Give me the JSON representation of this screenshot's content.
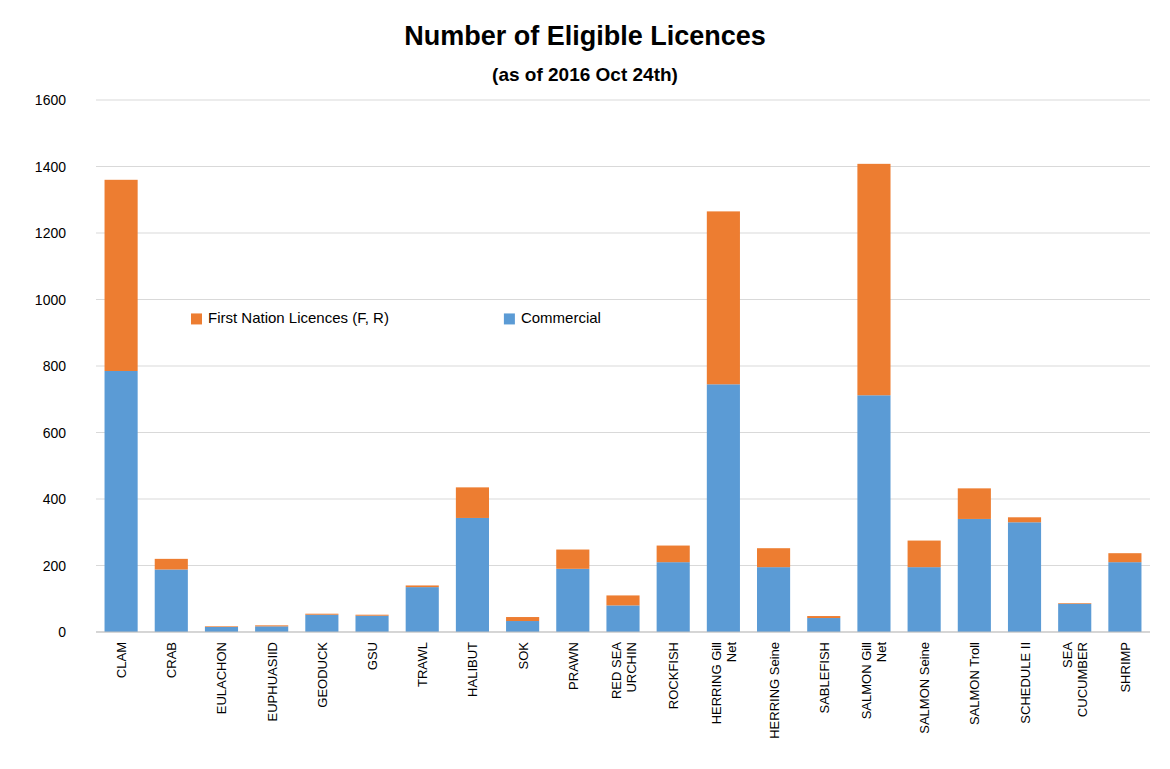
{
  "chart_data": {
    "type": "bar",
    "stacked": true,
    "title": "Number of Eligible Licences",
    "subtitle": "(as of 2016 Oct 24th)",
    "categories": [
      "CLAM",
      "CRAB",
      "EULACHON",
      "EUPHUASIID",
      "GEODUCK",
      "GSU",
      "TRAWL",
      "HALIBUT",
      "SOK",
      "PRAWN",
      "RED SEA\nURCHIN",
      "ROCKFISH",
      "HERRING Gill\nNet",
      "HERRING Seine",
      "SABLEFISH",
      "SALMON Gill\nNet",
      "SALMON Seine",
      "SALMON Troll",
      "SCHEDULE II",
      "SEA\nCUCUMBER",
      "SHRIMP"
    ],
    "series": [
      {
        "name": "Commercial",
        "color": "#5b9bd5",
        "values": [
          785,
          188,
          15,
          17,
          52,
          49,
          135,
          343,
          33,
          190,
          80,
          210,
          745,
          195,
          42,
          712,
          195,
          340,
          330,
          85,
          210
        ]
      },
      {
        "name": "First Nation Licences (F, R)",
        "color": "#ed7d31",
        "values": [
          575,
          32,
          2,
          3,
          3,
          3,
          5,
          92,
          12,
          58,
          30,
          50,
          520,
          57,
          6,
          696,
          80,
          92,
          15,
          2,
          27
        ]
      }
    ],
    "ylim": [
      0,
      1600
    ],
    "yticks": [
      0,
      200,
      400,
      600,
      800,
      1000,
      1200,
      1400,
      1600
    ],
    "grid": true,
    "legend": "left"
  }
}
